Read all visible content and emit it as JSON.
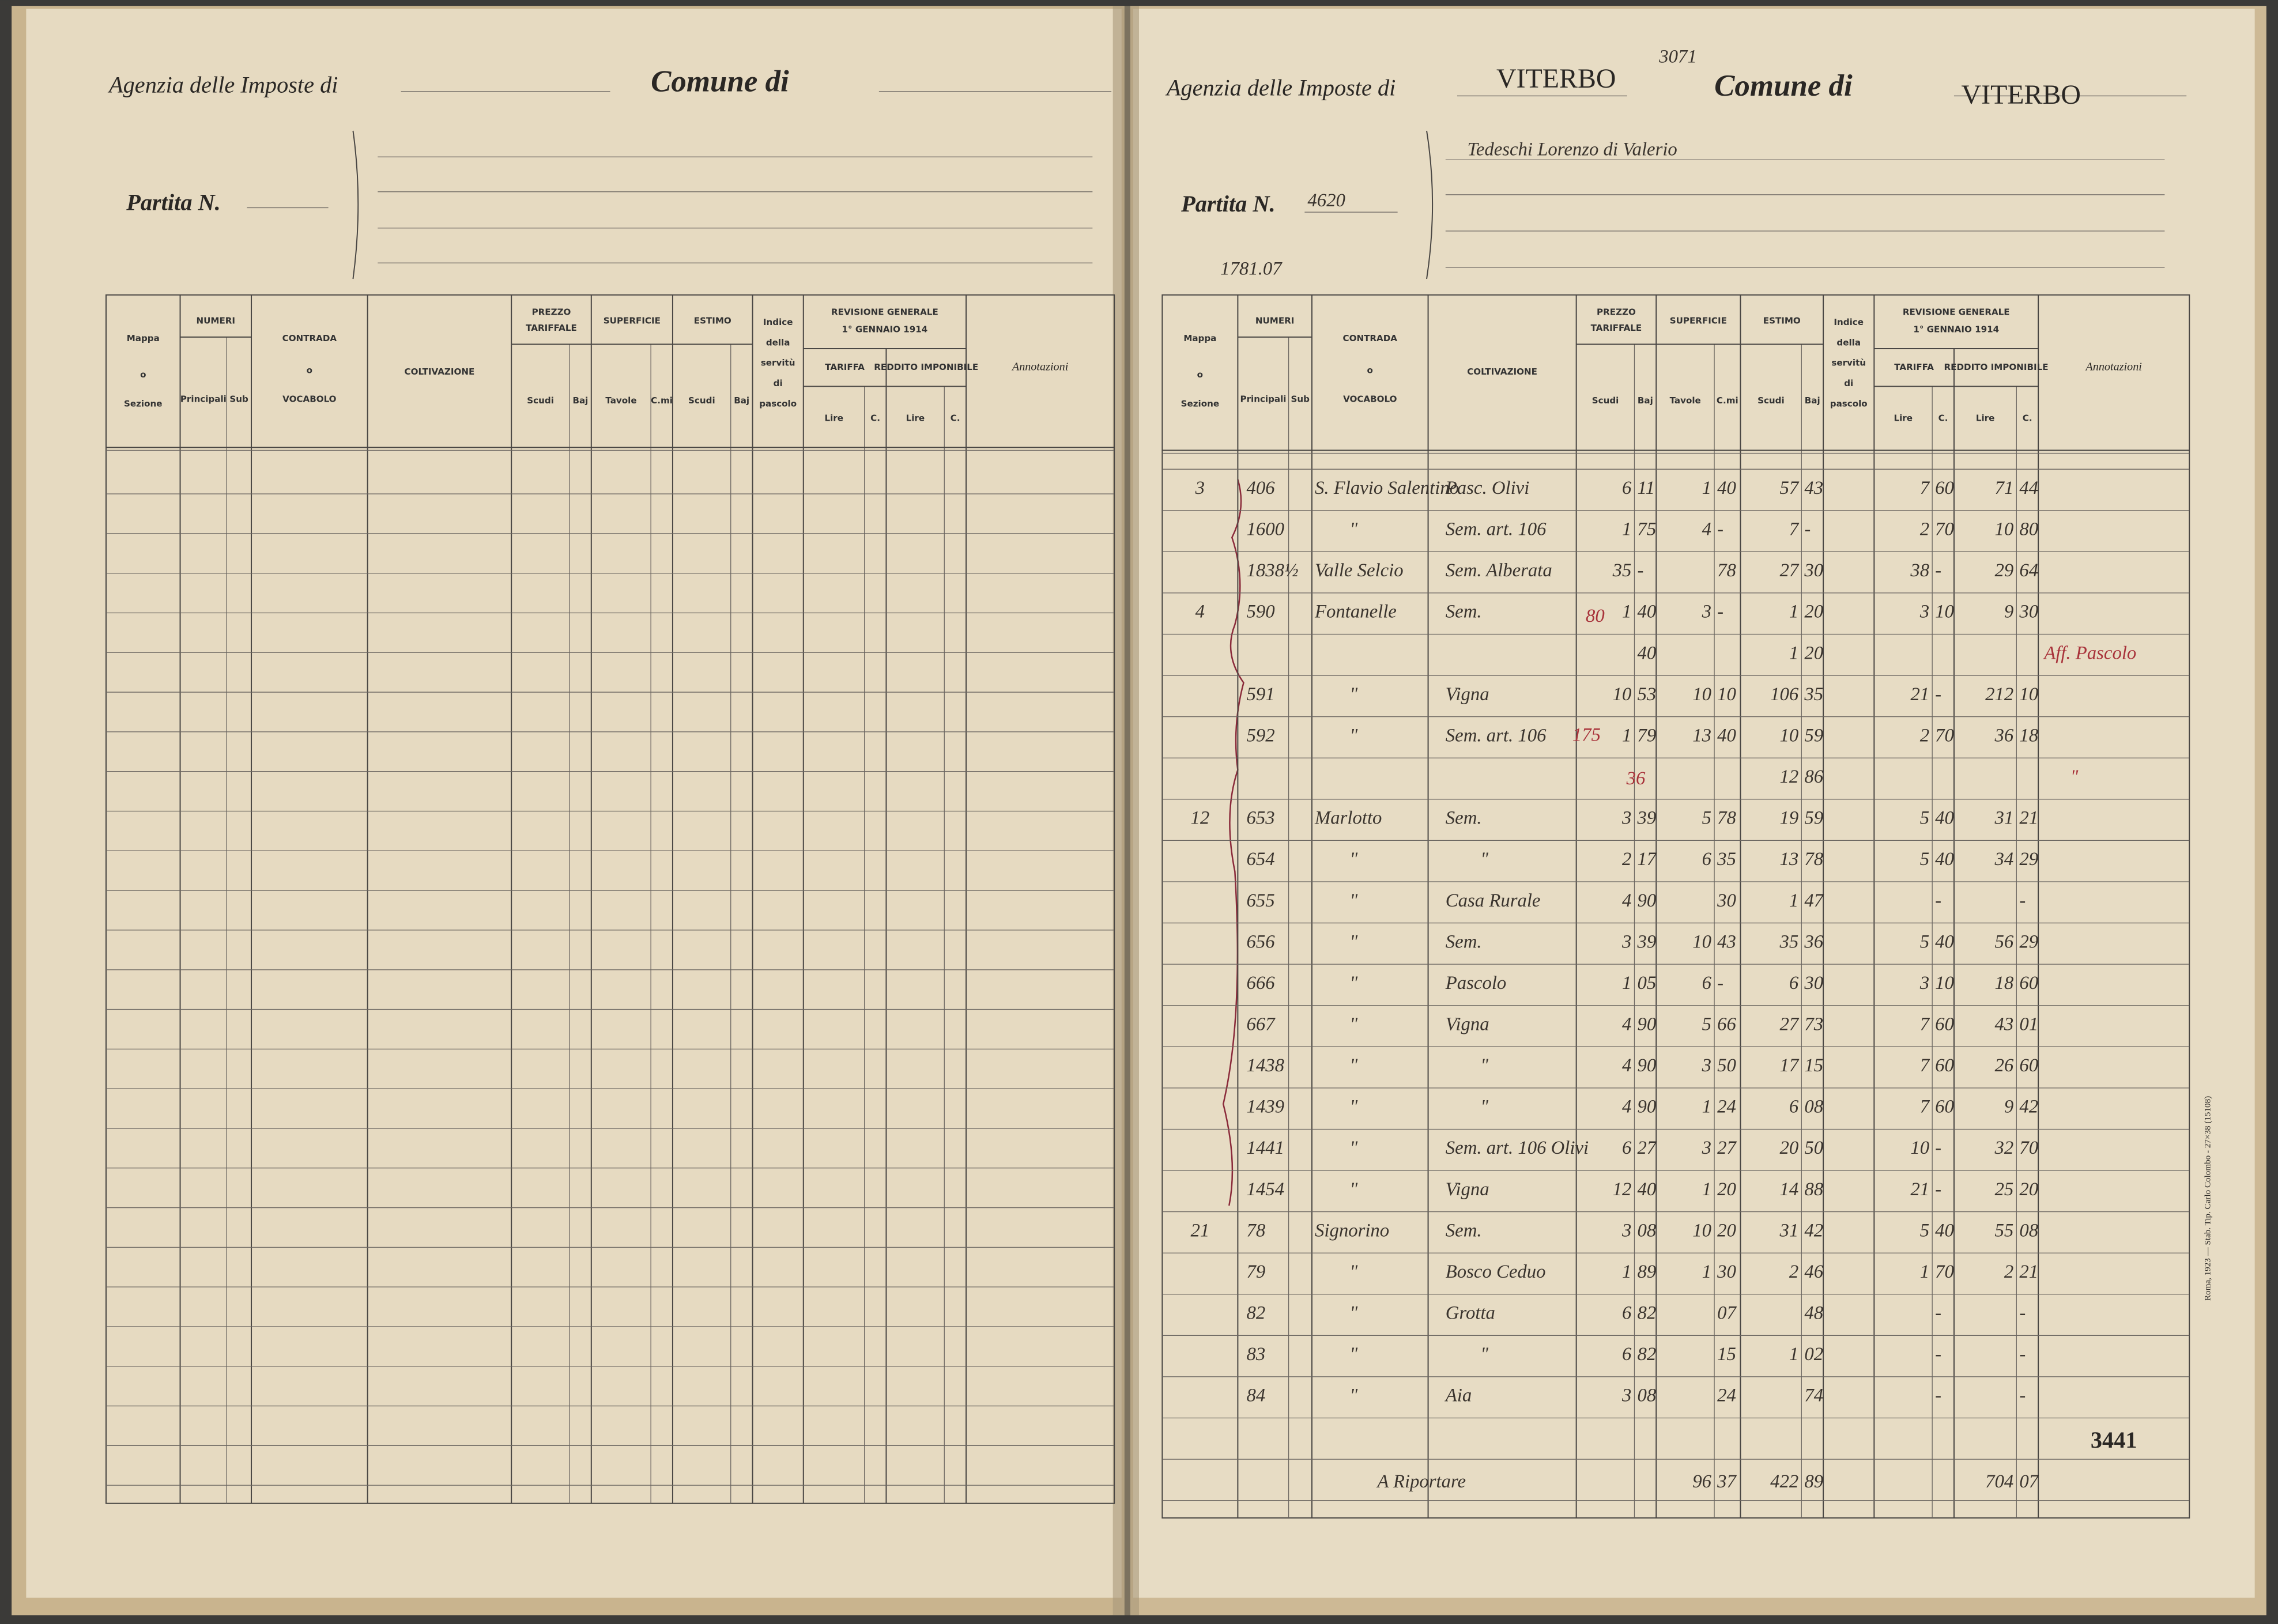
{
  "pages": [
    {
      "header": {
        "agenzia": "Agenzia delle Imposte di",
        "comune": "Comune di",
        "partita": "Partita N."
      },
      "table": {
        "headers": {
          "mappa": [
            "Mappa",
            "o",
            "Sezione"
          ],
          "numeri": "NUMERI",
          "principali": "Principali",
          "sub": "Sub",
          "contrada": [
            "CONTRADA",
            "o",
            "VOCABOLO"
          ],
          "coltivazione": "COLTIVAZIONE",
          "prezzo": [
            "PREZZO",
            "TARIFFALE"
          ],
          "superficie": "SUPERFICIE",
          "estimo": "ESTIMO",
          "scudi": "Scudi",
          "baj": "Baj",
          "tavole": "Tavole",
          "cmi": "C.mi",
          "scudi2": "Scudi",
          "baj2": "Baj",
          "indice": [
            "Indice",
            "della",
            "servitù",
            "di",
            "pascolo"
          ],
          "revisione": [
            "REVISIONE GENERALE",
            "1° GENNAIO 1914"
          ],
          "tariffa": "TARIFFA",
          "reddito": "REDDITO IMPONIBILE",
          "lire": "Lire",
          "c": "C.",
          "lire2": "Lire",
          "c2": "C.",
          "annotazioni": "Annotazioni"
        }
      }
    },
    {
      "header": {
        "agenzia": "Agenzia delle Imposte di",
        "agenzia_value": "VITERBO",
        "ref": "3071",
        "comune": "Comune di",
        "comune_value": "VITERBO",
        "partita": "Partita N.",
        "partita_value": "4620",
        "owner": "Tedeschi Lorenzo di Valerio",
        "ref2": "1781.07"
      },
      "table": {
        "headers": {
          "mappa": [
            "Mappa",
            "o",
            "Sezione"
          ],
          "numeri": "NUMERI",
          "principali": "Principali",
          "sub": "Sub",
          "contrada": [
            "CONTRADA",
            "o",
            "VOCABOLO"
          ],
          "coltivazione": "COLTIVAZIONE",
          "prezzo": [
            "PREZZO",
            "TARIFFALE"
          ],
          "superficie": "SUPERFICIE",
          "estimo": "ESTIMO",
          "scudi": "Scudi",
          "baj": "Baj",
          "tavole": "Tavole",
          "cmi": "C.mi",
          "scudi2": "Scudi",
          "baj2": "Baj",
          "indice": [
            "Indice",
            "della",
            "servitù",
            "di",
            "pascolo"
          ],
          "revisione": [
            "REVISIONE GENERALE",
            "1° GENNAIO 1914"
          ],
          "tariffa": "TARIFFA",
          "reddito": "REDDITO IMPONIBILE",
          "lire": "Lire",
          "c": "C.",
          "lire2": "Lire",
          "c2": "C.",
          "annotazioni": "Annotazioni"
        },
        "rows": [
          {
            "mappa": "3",
            "num": "406",
            "contrada": "S. Flavio Salentino",
            "coltura": "Pasc. Olivi",
            "prezzo": [
              "6",
              "11"
            ],
            "sup": [
              "1",
              "40"
            ],
            "estimo": [
              "57",
              "43"
            ],
            "tariffa": [
              "7",
              "60"
            ],
            "reddito": [
              "71",
              "44"
            ]
          },
          {
            "num": "1600",
            "contrada": "\"",
            "coltura": "Sem. art. 106",
            "prezzo": [
              "1",
              "75"
            ],
            "sup": [
              "4",
              "-"
            ],
            "estimo": [
              "7",
              "-"
            ],
            "tariffa": [
              "2",
              "70"
            ],
            "reddito": [
              "10",
              "80"
            ]
          },
          {
            "num": "1838½",
            "contrada": "Valle Selcio",
            "coltura": "Sem. Alberata",
            "prezzo": [
              "35",
              "-"
            ],
            "sup": [
              "78"
            ],
            "estimo": [
              "27",
              "30"
            ],
            "tariffa": [
              "38",
              "-"
            ],
            "reddito": [
              "29",
              "64"
            ]
          },
          {
            "mappa": "4",
            "num": "590",
            "contrada": "Fontanelle",
            "coltura": "Sem.",
            "prezzo": [
              "1",
              "40"
            ],
            "sup": [
              "3",
              "-"
            ],
            "estimo": [
              "1",
              "20"
            ],
            "tariffa": [
              "3",
              "10"
            ],
            "reddito": [
              "9",
              "30"
            ]
          },
          {
            "prezzo": [
              "40"
            ],
            "estimo": [
              "1",
              "20"
            ],
            "annot": "Aff. Pascolo"
          },
          {
            "num": "591",
            "contrada": "\"",
            "coltura": "Vigna",
            "prezzo": [
              "10",
              "53"
            ],
            "sup": [
              "10",
              "10"
            ],
            "estimo": [
              "106",
              "35"
            ],
            "tariffa": [
              "21",
              "-"
            ],
            "reddito": [
              "212",
              "10"
            ]
          },
          {
            "num": "592",
            "contrada": "\"",
            "coltura": "Sem. art. 106",
            "prezzo": [
              "1",
              "79"
            ],
            "sup": [
              "13",
              "40"
            ],
            "estimo": [
              "10",
              "59"
            ],
            "tariffa": [
              "2",
              "70"
            ],
            "reddito": [
              "36",
              "18"
            ]
          },
          {
            "estimo": [
              "12",
              "86"
            ],
            "annot": "\""
          },
          {
            "mappa": "12",
            "num": "653",
            "contrada": "Marlotto",
            "coltura": "Sem.",
            "prezzo": [
              "3",
              "39"
            ],
            "sup": [
              "5",
              "78"
            ],
            "estimo": [
              "19",
              "59"
            ],
            "tariffa": [
              "5",
              "40"
            ],
            "reddito": [
              "31",
              "21"
            ]
          },
          {
            "num": "654",
            "contrada": "\"",
            "coltura": "\"",
            "prezzo": [
              "2",
              "17"
            ],
            "sup": [
              "6",
              "35"
            ],
            "estimo": [
              "13",
              "78"
            ],
            "tariffa": [
              "5",
              "40"
            ],
            "reddito": [
              "34",
              "29"
            ]
          },
          {
            "num": "655",
            "contrada": "\"",
            "coltura": "Casa Rurale",
            "prezzo": [
              "4",
              "90"
            ],
            "sup": [
              "30"
            ],
            "estimo": [
              "1",
              "47"
            ],
            "tariffa": [
              "-"
            ],
            "reddito": [
              "-"
            ]
          },
          {
            "num": "656",
            "contrada": "\"",
            "coltura": "Sem.",
            "prezzo": [
              "3",
              "39"
            ],
            "sup": [
              "10",
              "43"
            ],
            "estimo": [
              "35",
              "36"
            ],
            "tariffa": [
              "5",
              "40"
            ],
            "reddito": [
              "56",
              "29"
            ]
          },
          {
            "num": "666",
            "contrada": "\"",
            "coltura": "Pascolo",
            "prezzo": [
              "1",
              "05"
            ],
            "sup": [
              "6",
              "-"
            ],
            "estimo": [
              "6",
              "30"
            ],
            "tariffa": [
              "3",
              "10"
            ],
            "reddito": [
              "18",
              "60"
            ]
          },
          {
            "num": "667",
            "contrada": "\"",
            "coltura": "Vigna",
            "prezzo": [
              "4",
              "90"
            ],
            "sup": [
              "5",
              "66"
            ],
            "estimo": [
              "27",
              "73"
            ],
            "tariffa": [
              "7",
              "60"
            ],
            "reddito": [
              "43",
              "01"
            ]
          },
          {
            "num": "1438",
            "contrada": "\"",
            "coltura": "\"",
            "prezzo": [
              "4",
              "90"
            ],
            "sup": [
              "3",
              "50"
            ],
            "estimo": [
              "17",
              "15"
            ],
            "tariffa": [
              "7",
              "60"
            ],
            "reddito": [
              "26",
              "60"
            ]
          },
          {
            "num": "1439",
            "contrada": "\"",
            "coltura": "\"",
            "prezzo": [
              "4",
              "90"
            ],
            "sup": [
              "1",
              "24"
            ],
            "estimo": [
              "6",
              "08"
            ],
            "tariffa": [
              "7",
              "60"
            ],
            "reddito": [
              "9",
              "42"
            ]
          },
          {
            "num": "1441",
            "contrada": "\"",
            "coltura": "Sem. art. 106 Olivi",
            "prezzo": [
              "6",
              "27"
            ],
            "sup": [
              "3",
              "27"
            ],
            "estimo": [
              "20",
              "50"
            ],
            "tariffa": [
              "10",
              "-"
            ],
            "reddito": [
              "32",
              "70"
            ]
          },
          {
            "num": "1454",
            "contrada": "\"",
            "coltura": "Vigna",
            "prezzo": [
              "12",
              "40"
            ],
            "sup": [
              "1",
              "20"
            ],
            "estimo": [
              "14",
              "88"
            ],
            "tariffa": [
              "21",
              "-"
            ],
            "reddito": [
              "25",
              "20"
            ]
          },
          {
            "mappa": "21",
            "num": "78",
            "contrada": "Signorino",
            "coltura": "Sem.",
            "prezzo": [
              "3",
              "08"
            ],
            "sup": [
              "10",
              "20"
            ],
            "estimo": [
              "31",
              "42"
            ],
            "tariffa": [
              "5",
              "40"
            ],
            "reddito": [
              "55",
              "08"
            ]
          },
          {
            "num": "79",
            "contrada": "\"",
            "coltura": "Bosco Ceduo",
            "prezzo": [
              "1",
              "89"
            ],
            "sup": [
              "1",
              "30"
            ],
            "estimo": [
              "2",
              "46"
            ],
            "tariffa": [
              "1",
              "70"
            ],
            "reddito": [
              "2",
              "21"
            ]
          },
          {
            "num": "82",
            "contrada": "\"",
            "coltura": "Grotta",
            "prezzo": [
              "6",
              "82"
            ],
            "sup": [
              "07"
            ],
            "estimo": [
              "48"
            ],
            "tariffa": [
              "-"
            ],
            "reddito": [
              "-"
            ]
          },
          {
            "num": "83",
            "contrada": "\"",
            "coltura": "\"",
            "prezzo": [
              "6",
              "82"
            ],
            "sup": [
              "15"
            ],
            "estimo": [
              "1",
              "02"
            ],
            "tariffa": [
              "-"
            ],
            "reddito": [
              "-"
            ]
          },
          {
            "num": "84",
            "contrada": "\"",
            "coltura": "Aia",
            "prezzo": [
              "3",
              "08"
            ],
            "sup": [
              "24"
            ],
            "estimo": [
              "74"
            ],
            "tariffa": [
              "-"
            ],
            "reddito": [
              "-"
            ]
          }
        ],
        "notes": [
          "80",
          "175",
          "36"
        ],
        "totals": {
          "label": "A Riportare",
          "sup": [
            "96",
            "37"
          ],
          "estimo": [
            "422",
            "89"
          ],
          "reddito": [
            "704",
            "07"
          ]
        },
        "stamp": "3441"
      },
      "imprint": "Roma, 1923 — Stab. Tip. Carlo Colombo - 27×38 (15108)"
    }
  ]
}
